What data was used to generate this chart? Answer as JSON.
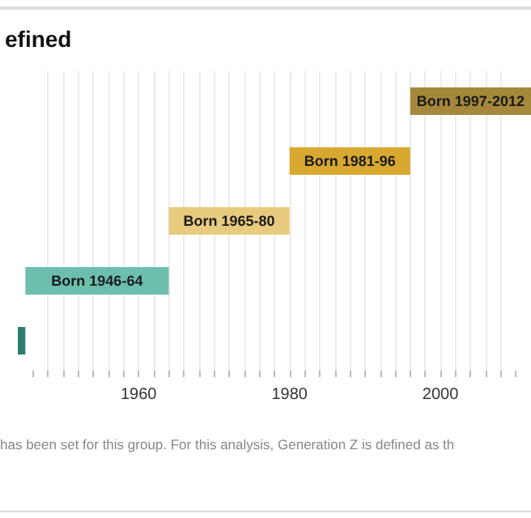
{
  "chart_data": {
    "type": "bar",
    "orientation": "horizontal",
    "title": "efined",
    "categories": [
      null,
      null,
      null,
      null,
      null
    ],
    "base": [
      1996,
      1980,
      1964,
      1945,
      1944
    ],
    "values": [
      16,
      16,
      16,
      19,
      1
    ],
    "colors": [
      "#a5883a",
      "#d8a831",
      "#e8cb7e",
      "#6cbfac",
      "#2e7d6d"
    ],
    "value_labels": [
      "Born 1997-2012",
      "Born 1981-96",
      "Born 1965-80",
      "Born 1946-64",
      null
    ],
    "xlim": [
      1944,
      2012
    ],
    "xticks": [
      {
        "value": 1946,
        "label": null
      },
      {
        "value": 1948,
        "label": null
      },
      {
        "value": 1950,
        "label": null
      },
      {
        "value": 1952,
        "label": null
      },
      {
        "value": 1954,
        "label": null
      },
      {
        "value": 1956,
        "label": null
      },
      {
        "value": 1958,
        "label": null
      },
      1960,
      {
        "value": 1962,
        "label": null
      },
      {
        "value": 1964,
        "label": null
      },
      {
        "value": 1966,
        "label": null
      },
      {
        "value": 1968,
        "label": null
      },
      {
        "value": 1970,
        "label": null
      },
      {
        "value": 1972,
        "label": null
      },
      {
        "value": 1974,
        "label": null
      },
      {
        "value": 1976,
        "label": null
      },
      {
        "value": 1978,
        "label": null
      },
      1980,
      {
        "value": 1982,
        "label": null
      },
      {
        "value": 1984,
        "label": null
      },
      {
        "value": 1986,
        "label": null
      },
      {
        "value": 1988,
        "label": null
      },
      {
        "value": 1990,
        "label": null
      },
      {
        "value": 1992,
        "label": null
      },
      {
        "value": 1994,
        "label": null
      },
      {
        "value": 1996,
        "label": null
      },
      {
        "value": 1998,
        "label": null
      },
      2000,
      {
        "value": 2002,
        "label": null
      },
      {
        "value": 2004,
        "label": null
      },
      {
        "value": 2006,
        "label": null
      },
      {
        "value": 2008,
        "label": null
      },
      {
        "value": 2010,
        "label": null
      }
    ],
    "grid": "x",
    "annotations": [
      "has been set for this group. For this analysis, Generation Z is defined as th"
    ]
  }
}
